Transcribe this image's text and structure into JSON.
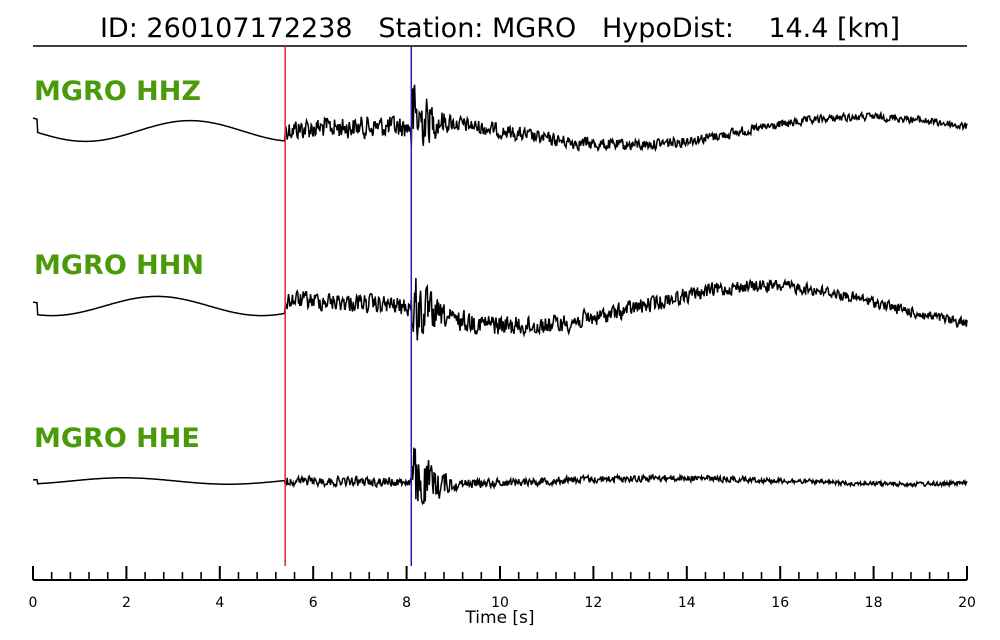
{
  "title": {
    "id_label": "ID:",
    "id_value": "260107172238",
    "station_label": "Station:",
    "station_value": "MGRO",
    "dist_label": "HypoDist:",
    "dist_value": "14.4 [km]"
  },
  "colors": {
    "label": "#4a9a0a",
    "trace": "#000000",
    "p_pick": "#e8231f",
    "s_pick": "#1f1fbf",
    "axis": "#000000"
  },
  "chart_data": {
    "type": "line",
    "title": "ID: 260107172238   Station: MGRO   HypoDist:    14.4 [km]",
    "xlabel": "Time [s]",
    "ylabel": "",
    "xlim": [
      0,
      20
    ],
    "xticks": [
      0,
      2,
      4,
      6,
      8,
      10,
      12,
      14,
      16,
      18,
      20
    ],
    "minor_tick_step": 0.4,
    "picks": [
      {
        "phase": "P",
        "time": 5.4,
        "color": "#e8231f"
      },
      {
        "phase": "S",
        "time": 8.1,
        "color": "#1f1fbf"
      }
    ],
    "series": [
      {
        "name": "MGRO HHZ",
        "channel": "HHZ"
      },
      {
        "name": "MGRO HHN",
        "channel": "HHN"
      },
      {
        "name": "MGRO HHE",
        "channel": "HHE"
      }
    ]
  }
}
